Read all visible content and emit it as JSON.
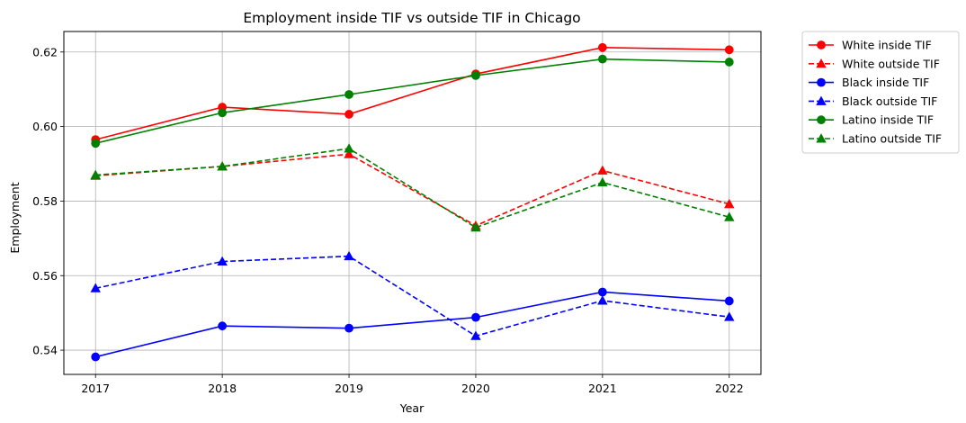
{
  "chart_data": {
    "type": "line",
    "title": "Employment inside TIF vs outside TIF in Chicago",
    "xlabel": "Year",
    "ylabel": "Employment",
    "x": [
      2017,
      2018,
      2019,
      2020,
      2021,
      2022
    ],
    "x_tick_labels": [
      "2017",
      "2018",
      "2019",
      "2020",
      "2021",
      "2022"
    ],
    "xlim": [
      2016.75,
      2022.25
    ],
    "ylim": [
      0.5335,
      0.6255
    ],
    "y_ticks": [
      0.54,
      0.56,
      0.58,
      0.6,
      0.62
    ],
    "y_tick_labels": [
      "0.54",
      "0.56",
      "0.58",
      "0.60",
      "0.62"
    ],
    "grid": true,
    "legend_position": "outside-top-right",
    "series": [
      {
        "name": "White inside TIF",
        "color": "#ff0000",
        "style": "solid",
        "marker": "circle",
        "values": [
          0.5965,
          0.6052,
          0.6033,
          0.6141,
          0.6212,
          0.6206
        ]
      },
      {
        "name": "White outside TIF",
        "color": "#ff0000",
        "style": "dashed",
        "marker": "triangle",
        "values": [
          0.5868,
          0.5893,
          0.5926,
          0.5734,
          0.5882,
          0.5792
        ]
      },
      {
        "name": "Black inside TIF",
        "color": "#0000ff",
        "style": "solid",
        "marker": "circle",
        "values": [
          0.5382,
          0.5465,
          0.5459,
          0.5488,
          0.5556,
          0.5532
        ]
      },
      {
        "name": "Black outside TIF",
        "color": "#0000ff",
        "style": "dashed",
        "marker": "triangle",
        "values": [
          0.5566,
          0.5638,
          0.5652,
          0.5438,
          0.5533,
          0.5489
        ]
      },
      {
        "name": "Latino inside TIF",
        "color": "#008000",
        "style": "solid",
        "marker": "circle",
        "values": [
          0.5955,
          0.6037,
          0.6086,
          0.6137,
          0.6181,
          0.6173
        ]
      },
      {
        "name": "Latino outside TIF",
        "color": "#008000",
        "style": "dashed",
        "marker": "triangle",
        "values": [
          0.587,
          0.5893,
          0.5941,
          0.5729,
          0.585,
          0.5757
        ]
      }
    ]
  }
}
